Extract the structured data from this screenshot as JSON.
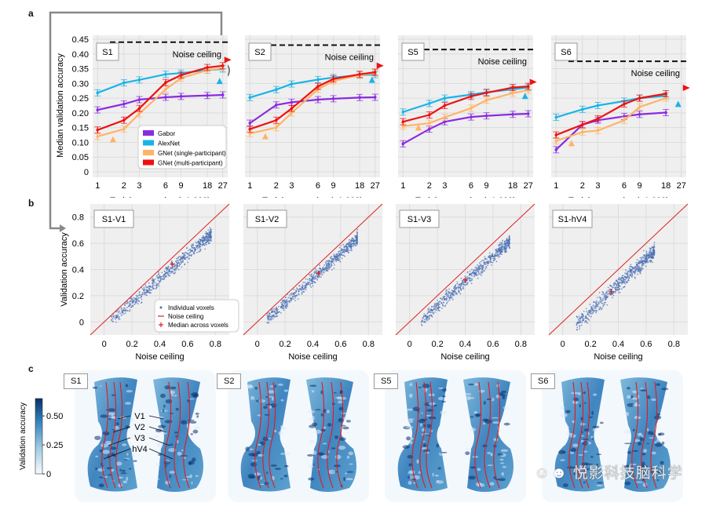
{
  "panel_labels": {
    "a": "a",
    "b": "b",
    "c": "c"
  },
  "colors": {
    "gabor": "#8a2be2",
    "alexnet": "#1ab3e6",
    "gnet_single": "#ffb366",
    "gnet_multi": "#ee1111",
    "scatter_point": "#4a6fb5",
    "noise_line": "#e02020",
    "plot_bg": "#efefef"
  },
  "watermark": "悦影科技脑科学",
  "chart_data": [
    {
      "type": "line",
      "panel": "a",
      "title": "S1",
      "xlabel": "Training samples (×1,000)",
      "ylabel": "Median validation accuracy",
      "x": [
        1,
        2,
        3,
        6,
        9,
        18,
        27
      ],
      "xticklabels": [
        "1",
        "2",
        "3",
        "6",
        "9",
        "18",
        "27"
      ],
      "ylim": [
        0,
        0.45
      ],
      "yticks": [
        0,
        0.05,
        0.1,
        0.15,
        0.2,
        0.25,
        0.3,
        0.35,
        0.4,
        0.45
      ],
      "yticklabels": [
        "0",
        "0.05",
        "0.10",
        "0.15",
        "0.20",
        "0.25",
        "0.30",
        "0.35",
        "0.40",
        "0.45"
      ],
      "noise_ceiling": 0.44,
      "noise_ceiling_label": "Noise ceiling",
      "series": [
        {
          "name": "Gabor",
          "key": "gabor",
          "values": [
            0.21,
            0.23,
            0.245,
            0.253,
            0.256,
            0.259,
            0.261
          ]
        },
        {
          "name": "AlexNet",
          "key": "alexnet",
          "values": [
            0.268,
            0.302,
            0.312,
            0.331,
            0.335,
            0.345,
            0.349
          ]
        },
        {
          "name": "GNet (single-participant)",
          "key": "gnet_single",
          "values": [
            0.12,
            0.145,
            0.197,
            0.28,
            0.318,
            0.345,
            0.352
          ]
        },
        {
          "name": "GNet (multi-participant)",
          "key": "gnet_multi",
          "values": [
            0.142,
            0.175,
            0.215,
            0.303,
            0.328,
            0.354,
            0.36
          ]
        }
      ],
      "markers": {
        "gnet_single_triangle": 0.108,
        "alexnet_triangle": 0.306,
        "gnet_multi_triangle": 0.38
      },
      "legend": [
        "Gabor",
        "AlexNet",
        "GNet (single-participant)",
        "GNet (multi-participant)"
      ],
      "legend_position": "bottom-right"
    },
    {
      "type": "line",
      "panel": "a",
      "title": "S2",
      "xlabel": "Training samples (×1,000)",
      "x": [
        1,
        2,
        3,
        6,
        9,
        18,
        27
      ],
      "xticklabels": [
        "1",
        "2",
        "3",
        "6",
        "9",
        "18",
        "27"
      ],
      "ylim": [
        0,
        0.45
      ],
      "noise_ceiling": 0.43,
      "noise_ceiling_label": "Noise ceiling",
      "series": [
        {
          "name": "Gabor",
          "key": "gabor",
          "values": [
            0.165,
            0.227,
            0.236,
            0.245,
            0.248,
            0.252,
            0.253
          ]
        },
        {
          "name": "AlexNet",
          "key": "alexnet",
          "values": [
            0.252,
            0.279,
            0.298,
            0.313,
            0.32,
            0.328,
            0.33
          ]
        },
        {
          "name": "GNet (single-participant)",
          "key": "gnet_single",
          "values": [
            0.13,
            0.15,
            0.2,
            0.28,
            0.308,
            0.328,
            0.335
          ]
        },
        {
          "name": "GNet (multi-participant)",
          "key": "gnet_multi",
          "values": [
            0.145,
            0.175,
            0.215,
            0.29,
            0.315,
            0.331,
            0.338
          ]
        }
      ],
      "markers": {
        "gnet_single_triangle": 0.118,
        "alexnet_triangle": 0.31,
        "gnet_multi_triangle": 0.36
      }
    },
    {
      "type": "line",
      "panel": "a",
      "title": "S5",
      "xlabel": "Training samples (×1,000)",
      "x": [
        1,
        2,
        3,
        6,
        9,
        18,
        27
      ],
      "xticklabels": [
        "1",
        "2",
        "3",
        "6",
        "9",
        "18",
        "27"
      ],
      "ylim": [
        0,
        0.45
      ],
      "noise_ceiling": 0.415,
      "noise_ceiling_label": "Noise ceiling",
      "series": [
        {
          "name": "Gabor",
          "key": "gabor",
          "values": [
            0.095,
            0.145,
            0.17,
            0.186,
            0.19,
            0.195,
            0.197
          ]
        },
        {
          "name": "AlexNet",
          "key": "alexnet",
          "values": [
            0.203,
            0.232,
            0.25,
            0.262,
            0.27,
            0.28,
            0.286
          ]
        },
        {
          "name": "GNet (single-participant)",
          "key": "gnet_single",
          "values": [
            0.155,
            0.165,
            0.185,
            0.216,
            0.243,
            0.267,
            0.277
          ]
        },
        {
          "name": "GNet (multi-participant)",
          "key": "gnet_multi",
          "values": [
            0.17,
            0.193,
            0.225,
            0.256,
            0.268,
            0.286,
            0.29
          ]
        }
      ],
      "markers": {
        "gnet_single_triangle": 0.148,
        "alexnet_triangle": 0.255,
        "gnet_multi_triangle": 0.305
      }
    },
    {
      "type": "line",
      "panel": "a",
      "title": "S6",
      "xlabel": "Training samples (×1,000)",
      "x": [
        1,
        2,
        3,
        6,
        9,
        18
      ],
      "xticks": [
        1,
        2,
        3,
        6,
        9,
        18,
        27
      ],
      "xticklabels": [
        "1",
        "2",
        "3",
        "6",
        "9",
        "18",
        "27"
      ],
      "ylim": [
        0,
        0.45
      ],
      "noise_ceiling": 0.375,
      "noise_ceiling_label": "Noise ceiling",
      "series": [
        {
          "name": "Gabor",
          "key": "gabor",
          "values": [
            0.075,
            0.16,
            0.175,
            0.188,
            0.195,
            0.201
          ]
        },
        {
          "name": "AlexNet",
          "key": "alexnet",
          "values": [
            0.185,
            0.212,
            0.225,
            0.24,
            0.25,
            0.258
          ]
        },
        {
          "name": "GNet (single-participant)",
          "key": "gnet_single",
          "values": [
            0.105,
            0.135,
            0.14,
            0.175,
            0.22,
            0.25
          ]
        },
        {
          "name": "GNet (multi-participant)",
          "key": "gnet_multi",
          "values": [
            0.125,
            0.16,
            0.18,
            0.23,
            0.25,
            0.265
          ]
        }
      ],
      "markers": {
        "gnet_single_triangle": 0.095,
        "alexnet_triangle": 0.228,
        "gnet_multi_triangle": 0.285
      }
    },
    {
      "type": "scatter",
      "panel": "b",
      "title": "S1-V1",
      "xlabel": "Noise ceiling",
      "ylabel": "Validation accuracy",
      "xlim": [
        -0.1,
        0.9
      ],
      "ylim": [
        -0.1,
        0.9
      ],
      "xticks": [
        0,
        0.2,
        0.4,
        0.6,
        0.8
      ],
      "yticks": [
        0,
        0.2,
        0.4,
        0.6,
        0.8
      ],
      "xticklabels": [
        "0",
        "0.2",
        "0.4",
        "0.6",
        "0.8"
      ],
      "yticklabels": [
        "0",
        "0.2",
        "0.4",
        "0.6",
        "0.8"
      ],
      "cloud": {
        "x_min": 0.05,
        "x_max": 0.77,
        "slope": 0.92,
        "offset": -0.04,
        "spread": 0.05
      },
      "median": [
        0.49,
        0.44
      ],
      "legend": [
        "Individual voxels",
        "Noise ceiling",
        "Median across voxels"
      ],
      "legend_position": "bottom-right"
    },
    {
      "type": "scatter",
      "panel": "b",
      "title": "S1-V2",
      "xlabel": "Noise ceiling",
      "xlim": [
        -0.1,
        0.9
      ],
      "ylim": [
        -0.1,
        0.9
      ],
      "xticklabels": [
        "0",
        "0.2",
        "0.4",
        "0.6",
        "0.8"
      ],
      "cloud": {
        "x_min": 0.07,
        "x_max": 0.72,
        "slope": 0.95,
        "offset": -0.05,
        "spread": 0.05
      },
      "median": [
        0.44,
        0.37
      ]
    },
    {
      "type": "scatter",
      "panel": "b",
      "title": "S1-V3",
      "xlabel": "Noise ceiling",
      "xlim": [
        -0.1,
        0.9
      ],
      "ylim": [
        -0.1,
        0.9
      ],
      "xticklabels": [
        "0",
        "0.2",
        "0.4",
        "0.6",
        "0.8"
      ],
      "cloud": {
        "x_min": 0.08,
        "x_max": 0.72,
        "slope": 0.95,
        "offset": -0.07,
        "spread": 0.05
      },
      "median": [
        0.4,
        0.32
      ]
    },
    {
      "type": "scatter",
      "panel": "b",
      "title": "S1-hV4",
      "xlabel": "Noise ceiling",
      "xlim": [
        -0.1,
        0.9
      ],
      "ylim": [
        -0.1,
        0.9
      ],
      "xticklabels": [
        "0",
        "0.2",
        "0.4",
        "0.6",
        "0.8"
      ],
      "cloud": {
        "x_min": 0.1,
        "x_max": 0.66,
        "slope": 1.0,
        "offset": -0.12,
        "spread": 0.06
      },
      "median": [
        0.35,
        0.23
      ]
    },
    {
      "type": "heatmap",
      "panel": "c",
      "colorbar": {
        "label": "Validation accuracy",
        "ticks": [
          0,
          0.25,
          0.5
        ],
        "ticklabels": [
          "0",
          "0.25",
          "0.50"
        ],
        "range": [
          0,
          0.65
        ]
      },
      "subjects": [
        "S1",
        "S2",
        "S5",
        "S6"
      ],
      "roi_labels": [
        "V1",
        "V2",
        "V3",
        "hV4"
      ]
    }
  ]
}
